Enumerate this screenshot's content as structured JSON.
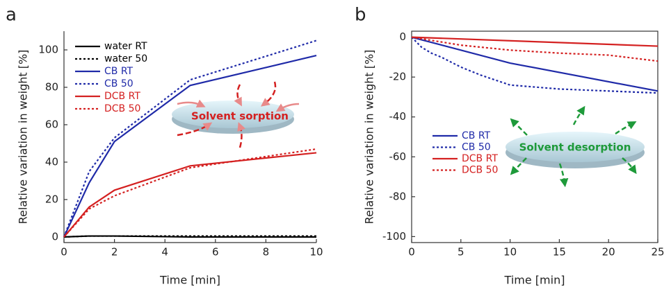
{
  "chart_data": [
    {
      "type": "line",
      "label": "a",
      "xlabel": "Time [min]",
      "ylabel": "Relative variation in weight  [%]",
      "annotation": "Solvent sorption",
      "legend": "upper left",
      "xlim": [
        0,
        10
      ],
      "ylim": [
        -3,
        110
      ],
      "xticks": [
        0,
        2,
        4,
        6,
        8,
        10
      ],
      "yticks": [
        0,
        20,
        40,
        60,
        80,
        100
      ],
      "series": [
        {
          "name": "water RT",
          "color": "#000000",
          "linestyle": "solid",
          "x": [
            0,
            1,
            2,
            5,
            10
          ],
          "values": [
            0,
            0.5,
            0.5,
            0,
            0
          ]
        },
        {
          "name": "water 50",
          "color": "#000000",
          "linestyle": "dotted",
          "x": [
            0,
            1,
            2,
            5,
            10
          ],
          "values": [
            0,
            0.5,
            0.5,
            0.5,
            0.5
          ]
        },
        {
          "name": "CB RT",
          "color": "#1f2aa8",
          "linestyle": "solid",
          "x": [
            0,
            1,
            2,
            5,
            10
          ],
          "values": [
            0,
            29,
            51,
            81,
            97
          ]
        },
        {
          "name": "CB 50",
          "color": "#1f2aa8",
          "linestyle": "dotted",
          "x": [
            0,
            1,
            2,
            5,
            10
          ],
          "values": [
            0,
            35,
            53,
            84,
            105
          ]
        },
        {
          "name": "DCB RT",
          "color": "#d42020",
          "linestyle": "solid",
          "x": [
            0,
            1,
            2,
            5,
            10
          ],
          "values": [
            0,
            16,
            25,
            38,
            45
          ]
        },
        {
          "name": "DCB 50",
          "color": "#d42020",
          "linestyle": "dotted",
          "x": [
            0,
            1,
            2,
            5,
            10
          ],
          "values": [
            0,
            15,
            22,
            37,
            47
          ]
        }
      ]
    },
    {
      "type": "line",
      "label": "b",
      "xlabel": "Time [min]",
      "ylabel": "Relative variation in weight  [%]",
      "annotation": "Solvent desorption",
      "legend": "center left",
      "xlim": [
        0,
        25
      ],
      "ylim": [
        -103,
        3
      ],
      "xticks": [
        0,
        5,
        10,
        15,
        20,
        25
      ],
      "yticks": [
        0,
        -20,
        -40,
        -60,
        -80,
        -100
      ],
      "series": [
        {
          "name": "CB RT",
          "color": "#1f2aa8",
          "linestyle": "solid",
          "x": [
            0,
            10,
            25
          ],
          "values": [
            0,
            -13,
            -27
          ]
        },
        {
          "name": "CB 50",
          "color": "#1f2aa8",
          "linestyle": "dotted",
          "x": [
            0,
            1,
            2,
            3,
            5,
            7,
            10,
            15,
            20,
            25
          ],
          "values": [
            0,
            -5,
            -8,
            -10,
            -15,
            -19,
            -24,
            -26,
            -27,
            -28
          ]
        },
        {
          "name": "DCB RT",
          "color": "#d42020",
          "linestyle": "solid",
          "x": [
            0,
            25
          ],
          "values": [
            0,
            -4.5
          ]
        },
        {
          "name": "DCB 50",
          "color": "#d42020",
          "linestyle": "dotted",
          "x": [
            0,
            5,
            10,
            15,
            20,
            25
          ],
          "values": [
            0,
            -4,
            -6.5,
            -8,
            -9,
            -12
          ]
        }
      ]
    }
  ]
}
